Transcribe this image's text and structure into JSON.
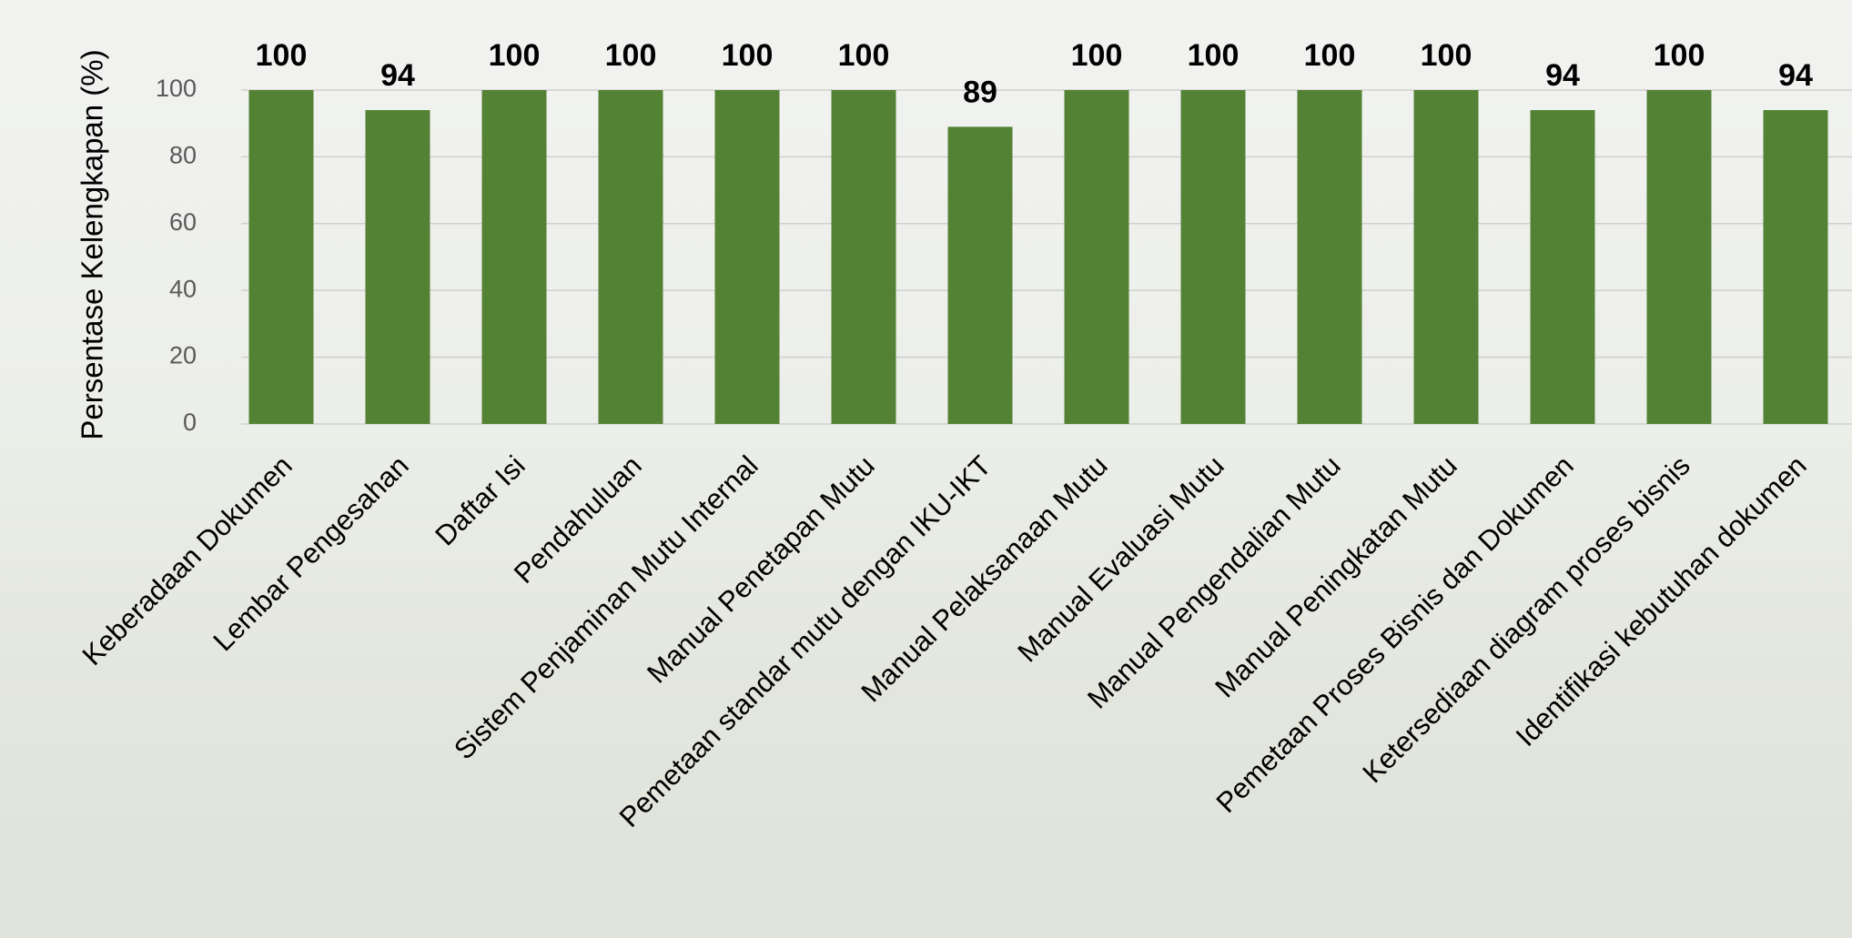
{
  "chart_data": {
    "type": "bar",
    "y_label": "Persentase Kelengkapan (%)",
    "categories": [
      "Keberadaan Dokumen",
      "Lembar Pengesahan",
      "Daftar Isi",
      "Pendahuluan",
      "Sistem Penjaminan Mutu Internal",
      "Manual Penetapan Mutu",
      "Pemetaan standar mutu dengan IKU-IKT",
      "Manual Pelaksanaan Mutu",
      "Manual Evaluasi Mutu",
      "Manual Pengendalian Mutu",
      "Manual Peningkatan Mutu",
      "Pemetaan Proses Bisnis dan Dokumen",
      "Ketersediaan diagram proses bisnis",
      "Identifikasi kebutuhan dokumen"
    ],
    "values": [
      100,
      94,
      100,
      100,
      100,
      100,
      89,
      100,
      100,
      100,
      100,
      94,
      100,
      94
    ],
    "color": "#548235",
    "ylim": [
      0,
      100
    ],
    "yticks": [
      0,
      20,
      40,
      60,
      80,
      100
    ],
    "grid": true
  }
}
